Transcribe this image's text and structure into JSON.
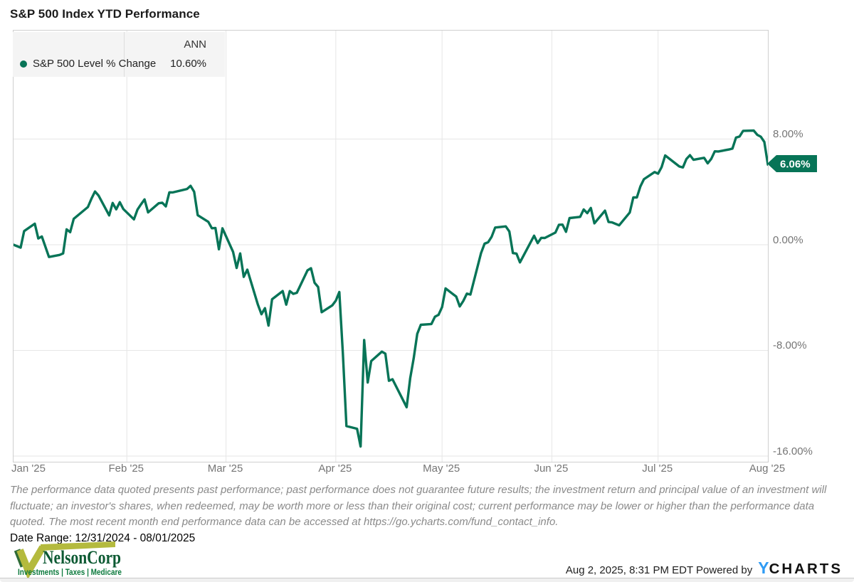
{
  "title": "S&P 500 Index YTD Performance",
  "legend": {
    "ann_header": "ANN",
    "series_label": "S&P 500 Level % Change",
    "ann_value": "10.60%"
  },
  "badge": {
    "label": "6.06%"
  },
  "disclaimer": "The performance data quoted presents past performance; past performance does not guarantee future results; the investment return and principal value of an investment will fluctuate; an investor's shares, when redeemed, may be worth more or less than their original cost; current performance may be lower or higher than the performance data quoted. The most recent month end performance data can be accessed at https://go.ycharts.com/fund_contact_info.",
  "date_range": "Date Range: 12/31/2024 - 08/01/2025",
  "nelson_logo": {
    "name": "NelsonCorp",
    "tagline": "Investments | Taxes | Medicare",
    "olive_color": "#b4ba3e",
    "green_text_color": "#0d5a33",
    "tagline_color": "#0c7a3d"
  },
  "footer": {
    "timestamp_powered": "Aug 2, 2025, 8:31 PM EDT Powered by",
    "ycharts_y": "Y",
    "ycharts_rest": "CHARTS",
    "ycharts_blue": "#2f9bf4"
  },
  "colors": {
    "series_green": "#077457",
    "badge_green": "#077457",
    "grid": "#e6e6e6",
    "axis_text": "#757575"
  },
  "chart_data": {
    "type": "line",
    "title": "S&P 500 Index YTD Performance",
    "x_range": [
      "2024-12-31",
      "2025-08-01"
    ],
    "ylim": [
      -16.43,
      16.21
    ],
    "grid": true,
    "legend_position": "top-left",
    "y_ticks": [
      {
        "value": 8,
        "label": "8.00%"
      },
      {
        "value": 0,
        "label": "0.00%"
      },
      {
        "value": -8,
        "label": "-8.00%"
      },
      {
        "value": -16,
        "label": "-16.00%"
      }
    ],
    "x_ticks": [
      {
        "label": "Jan '25",
        "date": "2025-01-01"
      },
      {
        "label": "Feb '25",
        "date": "2025-02-01"
      },
      {
        "label": "Mar '25",
        "date": "2025-03-01"
      },
      {
        "label": "Apr '25",
        "date": "2025-04-01"
      },
      {
        "label": "May '25",
        "date": "2025-05-01"
      },
      {
        "label": "Jun '25",
        "date": "2025-06-01"
      },
      {
        "label": "Jul '25",
        "date": "2025-07-01"
      },
      {
        "label": "Aug '25",
        "date": "2025-08-01"
      }
    ],
    "series": [
      {
        "name": "S&P 500 Level % Change",
        "color": "#077457",
        "ann_return_pct": 10.6,
        "last_value_pct": 6.06,
        "points": [
          [
            "2024-12-31",
            0.0
          ],
          [
            "2025-01-02",
            -0.22
          ],
          [
            "2025-01-03",
            1.03
          ],
          [
            "2025-01-06",
            1.59
          ],
          [
            "2025-01-07",
            0.47
          ],
          [
            "2025-01-08",
            0.62
          ],
          [
            "2025-01-10",
            -0.93
          ],
          [
            "2025-01-13",
            -0.77
          ],
          [
            "2025-01-14",
            -0.66
          ],
          [
            "2025-01-15",
            1.16
          ],
          [
            "2025-01-16",
            0.95
          ],
          [
            "2025-01-17",
            1.96
          ],
          [
            "2025-01-21",
            2.85
          ],
          [
            "2025-01-22",
            3.48
          ],
          [
            "2025-01-23",
            4.03
          ],
          [
            "2025-01-24",
            3.73
          ],
          [
            "2025-01-27",
            2.22
          ],
          [
            "2025-01-28",
            3.16
          ],
          [
            "2025-01-29",
            2.68
          ],
          [
            "2025-01-30",
            3.22
          ],
          [
            "2025-01-31",
            2.7
          ],
          [
            "2025-02-03",
            1.92
          ],
          [
            "2025-02-04",
            2.66
          ],
          [
            "2025-02-05",
            3.06
          ],
          [
            "2025-02-06",
            3.43
          ],
          [
            "2025-02-07",
            2.45
          ],
          [
            "2025-02-10",
            3.14
          ],
          [
            "2025-02-11",
            3.18
          ],
          [
            "2025-02-12",
            2.9
          ],
          [
            "2025-02-13",
            3.97
          ],
          [
            "2025-02-14",
            3.96
          ],
          [
            "2025-02-18",
            4.22
          ],
          [
            "2025-02-19",
            4.46
          ],
          [
            "2025-02-20",
            4.01
          ],
          [
            "2025-02-21",
            2.24
          ],
          [
            "2025-02-24",
            1.73
          ],
          [
            "2025-02-25",
            1.25
          ],
          [
            "2025-02-26",
            1.27
          ],
          [
            "2025-02-27",
            -0.34
          ],
          [
            "2025-02-28",
            1.24
          ],
          [
            "2025-03-03",
            -0.54
          ],
          [
            "2025-03-04",
            -1.76
          ],
          [
            "2025-03-05",
            -0.66
          ],
          [
            "2025-03-06",
            -2.43
          ],
          [
            "2025-03-07",
            -1.89
          ],
          [
            "2025-03-10",
            -4.54
          ],
          [
            "2025-03-11",
            -5.26
          ],
          [
            "2025-03-12",
            -4.8
          ],
          [
            "2025-03-13",
            -6.12
          ],
          [
            "2025-03-14",
            -4.13
          ],
          [
            "2025-03-17",
            -3.51
          ],
          [
            "2025-03-18",
            -4.54
          ],
          [
            "2025-03-19",
            -3.51
          ],
          [
            "2025-03-20",
            -3.72
          ],
          [
            "2025-03-21",
            -3.64
          ],
          [
            "2025-03-24",
            -1.94
          ],
          [
            "2025-03-25",
            -1.78
          ],
          [
            "2025-03-26",
            -2.88
          ],
          [
            "2025-03-27",
            -3.2
          ],
          [
            "2025-03-28",
            -5.11
          ],
          [
            "2025-03-31",
            -4.59
          ],
          [
            "2025-04-01",
            -4.23
          ],
          [
            "2025-04-02",
            -3.58
          ],
          [
            "2025-04-03",
            -8.25
          ],
          [
            "2025-04-04",
            -13.73
          ],
          [
            "2025-04-07",
            -13.93
          ],
          [
            "2025-04-08",
            -15.28
          ],
          [
            "2025-04-09",
            -7.22
          ],
          [
            "2025-04-10",
            -10.43
          ],
          [
            "2025-04-11",
            -8.81
          ],
          [
            "2025-04-14",
            -8.09
          ],
          [
            "2025-04-15",
            -8.25
          ],
          [
            "2025-04-16",
            -10.3
          ],
          [
            "2025-04-17",
            -10.18
          ],
          [
            "2025-04-21",
            -12.3
          ],
          [
            "2025-04-22",
            -10.1
          ],
          [
            "2025-04-23",
            -8.6
          ],
          [
            "2025-04-24",
            -6.75
          ],
          [
            "2025-04-25",
            -6.06
          ],
          [
            "2025-04-28",
            -6.0
          ],
          [
            "2025-04-29",
            -5.45
          ],
          [
            "2025-04-30",
            -5.31
          ],
          [
            "2025-05-01",
            -4.72
          ],
          [
            "2025-05-02",
            -3.31
          ],
          [
            "2025-05-05",
            -3.93
          ],
          [
            "2025-05-06",
            -4.67
          ],
          [
            "2025-05-07",
            -4.26
          ],
          [
            "2025-05-08",
            -3.7
          ],
          [
            "2025-05-09",
            -3.77
          ],
          [
            "2025-05-12",
            -0.64
          ],
          [
            "2025-05-13",
            0.08
          ],
          [
            "2025-05-14",
            0.19
          ],
          [
            "2025-05-15",
            0.6
          ],
          [
            "2025-05-16",
            1.3
          ],
          [
            "2025-05-19",
            1.39
          ],
          [
            "2025-05-20",
            1.0
          ],
          [
            "2025-05-21",
            -0.63
          ],
          [
            "2025-05-22",
            -0.67
          ],
          [
            "2025-05-23",
            -1.34
          ],
          [
            "2025-05-27",
            0.68
          ],
          [
            "2025-05-28",
            0.12
          ],
          [
            "2025-05-29",
            0.52
          ],
          [
            "2025-05-30",
            0.51
          ],
          [
            "2025-06-02",
            0.92
          ],
          [
            "2025-06-03",
            1.51
          ],
          [
            "2025-06-04",
            1.52
          ],
          [
            "2025-06-05",
            0.98
          ],
          [
            "2025-06-06",
            2.02
          ],
          [
            "2025-06-09",
            2.11
          ],
          [
            "2025-06-10",
            2.67
          ],
          [
            "2025-06-11",
            2.39
          ],
          [
            "2025-06-12",
            2.78
          ],
          [
            "2025-06-13",
            1.62
          ],
          [
            "2025-06-16",
            2.58
          ],
          [
            "2025-06-17",
            1.72
          ],
          [
            "2025-06-18",
            1.69
          ],
          [
            "2025-06-20",
            1.47
          ],
          [
            "2025-06-23",
            2.44
          ],
          [
            "2025-06-24",
            3.58
          ],
          [
            "2025-06-25",
            3.58
          ],
          [
            "2025-06-26",
            4.41
          ],
          [
            "2025-06-27",
            4.96
          ],
          [
            "2025-06-30",
            5.5
          ],
          [
            "2025-07-01",
            5.38
          ],
          [
            "2025-07-02",
            5.88
          ],
          [
            "2025-07-03",
            6.76
          ],
          [
            "2025-07-07",
            5.92
          ],
          [
            "2025-07-08",
            5.85
          ],
          [
            "2025-07-09",
            6.49
          ],
          [
            "2025-07-10",
            6.78
          ],
          [
            "2025-07-11",
            6.43
          ],
          [
            "2025-07-14",
            6.58
          ],
          [
            "2025-07-15",
            6.16
          ],
          [
            "2025-07-16",
            6.5
          ],
          [
            "2025-07-17",
            7.07
          ],
          [
            "2025-07-18",
            7.06
          ],
          [
            "2025-07-21",
            7.21
          ],
          [
            "2025-07-22",
            7.28
          ],
          [
            "2025-07-23",
            8.11
          ],
          [
            "2025-07-24",
            8.19
          ],
          [
            "2025-07-25",
            8.62
          ],
          [
            "2025-07-28",
            8.64
          ],
          [
            "2025-07-29",
            8.32
          ],
          [
            "2025-07-30",
            8.18
          ],
          [
            "2025-07-31",
            7.78
          ],
          [
            "2025-08-01",
            6.06
          ]
        ]
      }
    ]
  }
}
